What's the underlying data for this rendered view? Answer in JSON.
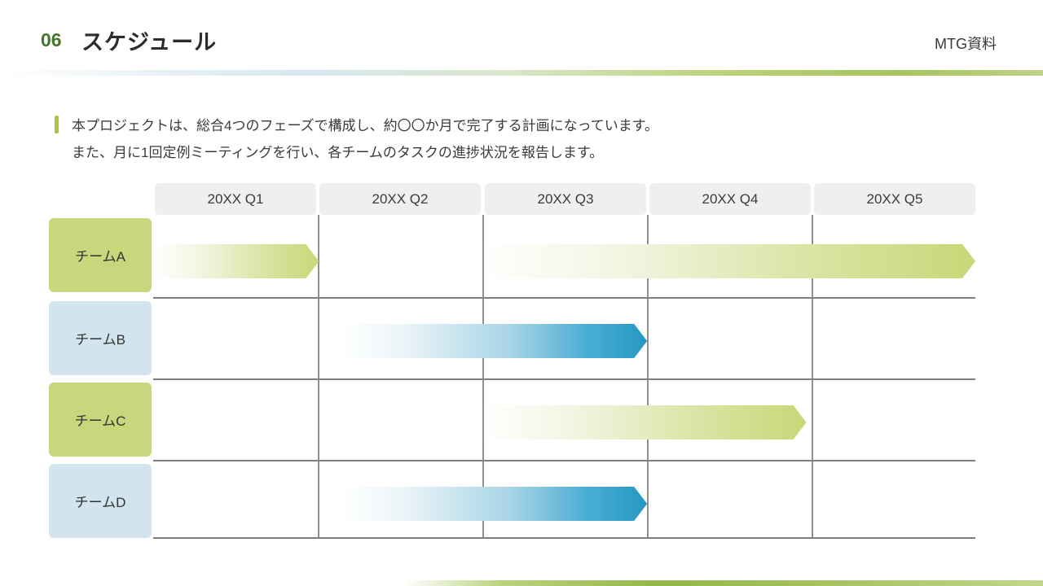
{
  "slide": {
    "page_number": "06",
    "title": "スケジュール",
    "corner_label": "MTG資料"
  },
  "intro": {
    "line1": "本プロジェクトは、総合4つのフェーズで構成し、約〇〇か月で完了する計画になっています。",
    "line2": "また、月に1回定例ミーティングを行い、各チームのタスクの進捗状況を報告します。"
  },
  "chart_data": {
    "type": "gantt",
    "x_unit": "quarter",
    "x_range": [
      1,
      6
    ],
    "columns": [
      "20XX Q1",
      "20XX Q2",
      "20XX Q3",
      "20XX Q4",
      "20XX Q5"
    ],
    "rows": [
      {
        "label": "チームA",
        "label_theme": "green",
        "bars": [
          {
            "start": 1.0,
            "end": 2.0,
            "theme": "green"
          },
          {
            "start": 3.0,
            "end": 6.0,
            "theme": "green"
          }
        ]
      },
      {
        "label": "チームB",
        "label_theme": "blue",
        "bars": [
          {
            "start": 2.15,
            "end": 4.0,
            "theme": "blue"
          }
        ]
      },
      {
        "label": "チームC",
        "label_theme": "green",
        "bars": [
          {
            "start": 3.0,
            "end": 4.97,
            "theme": "green"
          }
        ]
      },
      {
        "label": "チームD",
        "label_theme": "blue",
        "bars": [
          {
            "start": 2.15,
            "end": 4.0,
            "theme": "blue"
          }
        ]
      }
    ],
    "legend": "none",
    "grid": "on",
    "colors": {
      "green_bar_end": "#c6d877",
      "blue_bar_end": "#2697c3",
      "green_label_bg": "#c6d87b",
      "blue_label_bg": "#d2e4ed",
      "column_pill_bg": "#efeff1",
      "gridline": "#8f8f8f"
    }
  },
  "theme": {
    "accent_green": "#a9c548",
    "page_number_color": "#44762c",
    "text_color": "#3a3a3a"
  }
}
